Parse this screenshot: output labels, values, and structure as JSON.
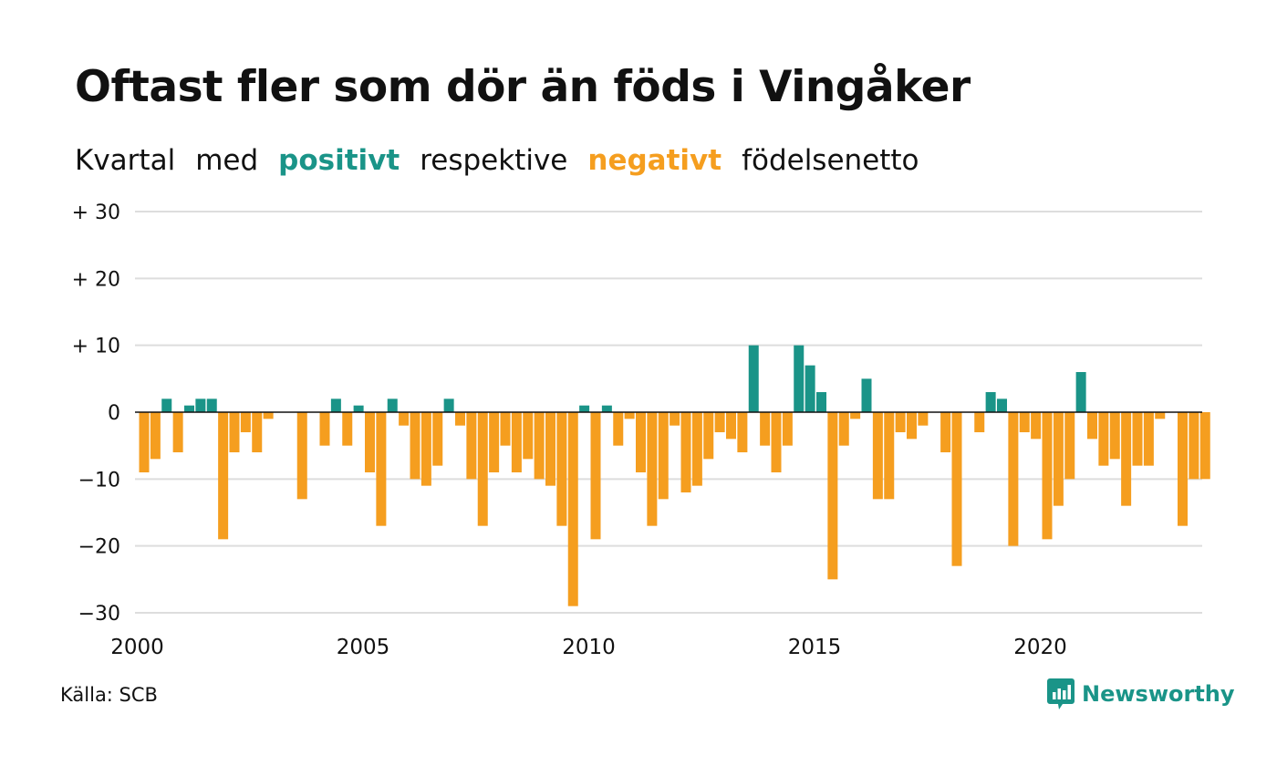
{
  "title": "Oftast fler som dör än föds i Vingåker",
  "subtitle": {
    "part1": "Kvartal",
    "part2": "med",
    "positive_word": "positivt",
    "part3": "respektive",
    "negative_word": "negativt",
    "part4": "födelsenetto"
  },
  "source": "Källa: SCB",
  "brand": "Newsworthy",
  "colors": {
    "positive": "#1a9488",
    "negative": "#f59e1f",
    "grid": "#dddddd"
  },
  "chart_data": {
    "type": "bar",
    "x_start_year": 2000,
    "frequency": "quarterly",
    "ylim": [
      -30,
      30
    ],
    "yticks": [
      30,
      20,
      10,
      0,
      -10,
      -20,
      -30
    ],
    "ytick_labels": [
      "+ 30",
      "+ 20",
      "+ 10",
      "0",
      "−10",
      "−20",
      "−30"
    ],
    "xticks": [
      2000,
      2005,
      2010,
      2015,
      2020
    ],
    "xtick_labels": [
      "2000",
      "2005",
      "2010",
      "2015",
      "2020"
    ],
    "grid": true,
    "values": [
      -9,
      -7,
      2,
      -6,
      1,
      2,
      2,
      -19,
      -6,
      -3,
      -6,
      -1,
      0,
      0,
      -13,
      0,
      -5,
      2,
      -5,
      1,
      -9,
      -17,
      2,
      -2,
      -10,
      -11,
      -8,
      2,
      -2,
      -10,
      -17,
      -9,
      -5,
      -9,
      -7,
      -10,
      -11,
      -17,
      -29,
      1,
      -19,
      1,
      -5,
      -1,
      -9,
      -17,
      -13,
      -2,
      -12,
      -11,
      -7,
      -3,
      -4,
      -6,
      10,
      -5,
      -9,
      -5,
      10,
      7,
      3,
      -25,
      -5,
      -1,
      5,
      -13,
      -13,
      -3,
      -4,
      -2,
      0,
      -6,
      -23,
      0,
      -3,
      3,
      2,
      -20,
      -3,
      -4,
      -19,
      -14,
      -10,
      6,
      -4,
      -8,
      -7,
      -14,
      -8,
      -8,
      -1,
      0,
      -17,
      -10,
      -10
    ]
  }
}
